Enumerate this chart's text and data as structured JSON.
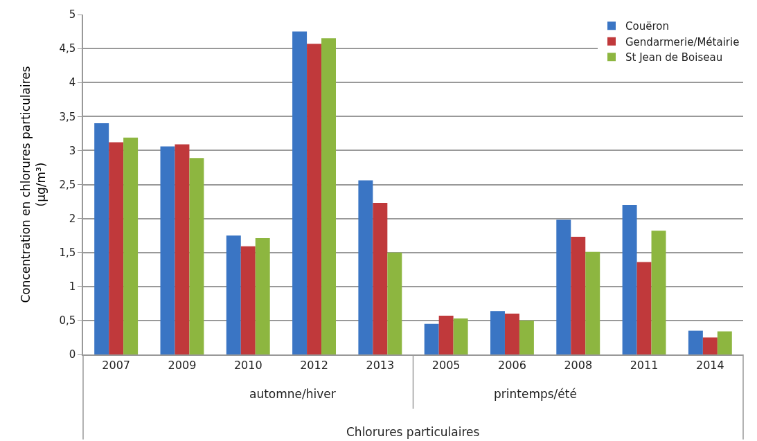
{
  "chart_data": {
    "type": "bar",
    "ylabel": "Concentration en chlorures particulaires (µg/m³)",
    "xlabel": "Chlorures particulaires",
    "categories": [
      "2007",
      "2009",
      "2010",
      "2012",
      "2013",
      "2005",
      "2006",
      "2008",
      "2011",
      "2014"
    ],
    "series": [
      {
        "name": "Couëron",
        "color": "#3a75c4",
        "values": [
          3.4,
          3.06,
          1.75,
          4.75,
          2.56,
          0.45,
          0.64,
          1.98,
          2.2,
          0.35
        ]
      },
      {
        "name": "Gendarmerie/Métairie",
        "color": "#c0393b",
        "values": [
          3.12,
          3.09,
          1.59,
          4.57,
          2.23,
          0.57,
          0.6,
          1.73,
          1.36,
          0.25
        ]
      },
      {
        "name": "St Jean de Boiseau",
        "color": "#8db640",
        "values": [
          3.19,
          2.89,
          1.71,
          4.65,
          1.5,
          0.53,
          0.5,
          1.51,
          1.82,
          0.34
        ]
      }
    ],
    "annotations": [
      "automne/hiver",
      "printemps/été"
    ],
    "ylim": [
      0,
      5
    ],
    "yticks": [
      0,
      {
        "value": 0.5,
        "label": "0,5"
      },
      1,
      {
        "value": 1.5,
        "label": "1,5"
      },
      2,
      {
        "value": 2.5,
        "label": "2,5"
      },
      3,
      {
        "value": 3.5,
        "label": "3,5"
      },
      4,
      {
        "value": 4.5,
        "label": "4,5"
      },
      5
    ],
    "grid": "y",
    "legend": "top right"
  }
}
